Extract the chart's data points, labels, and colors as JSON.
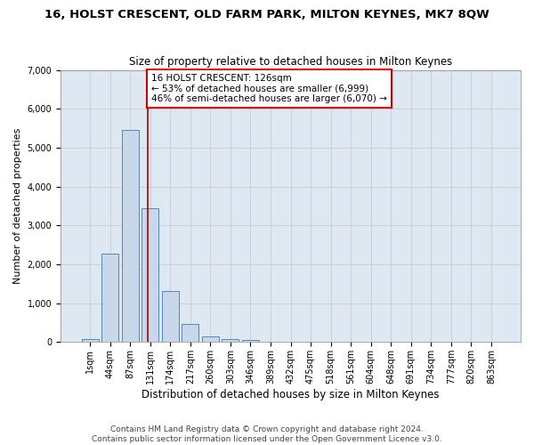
{
  "title": "16, HOLST CRESCENT, OLD FARM PARK, MILTON KEYNES, MK7 8QW",
  "subtitle": "Size of property relative to detached houses in Milton Keynes",
  "xlabel": "Distribution of detached houses by size in Milton Keynes",
  "ylabel": "Number of detached properties",
  "bar_labels": [
    "1sqm",
    "44sqm",
    "87sqm",
    "131sqm",
    "174sqm",
    "217sqm",
    "260sqm",
    "303sqm",
    "346sqm",
    "389sqm",
    "432sqm",
    "475sqm",
    "518sqm",
    "561sqm",
    "604sqm",
    "648sqm",
    "691sqm",
    "734sqm",
    "777sqm",
    "820sqm",
    "863sqm"
  ],
  "bar_values": [
    80,
    2280,
    5460,
    3430,
    1320,
    470,
    155,
    80,
    45,
    0,
    0,
    0,
    0,
    0,
    0,
    0,
    0,
    0,
    0,
    0,
    0
  ],
  "bar_color": "#c8d8ea",
  "bar_edge_color": "#4477aa",
  "vline_bin": 2.9,
  "vline_color": "#aa0000",
  "annotation_text": "16 HOLST CRESCENT: 126sqm\n← 53% of detached houses are smaller (6,999)\n46% of semi-detached houses are larger (6,070) →",
  "annotation_box_color": "#ffffff",
  "annotation_border_color": "#cc0000",
  "ylim": [
    0,
    7000
  ],
  "yticks": [
    0,
    1000,
    2000,
    3000,
    4000,
    5000,
    6000,
    7000
  ],
  "grid_color": "#cccccc",
  "bg_color": "#dde8f2",
  "footer": "Contains HM Land Registry data © Crown copyright and database right 2024.\nContains public sector information licensed under the Open Government Licence v3.0.",
  "title_fontsize": 9.5,
  "subtitle_fontsize": 8.5,
  "xlabel_fontsize": 8.5,
  "ylabel_fontsize": 8,
  "tick_fontsize": 7,
  "annotation_fontsize": 7.5,
  "footer_fontsize": 6.5
}
